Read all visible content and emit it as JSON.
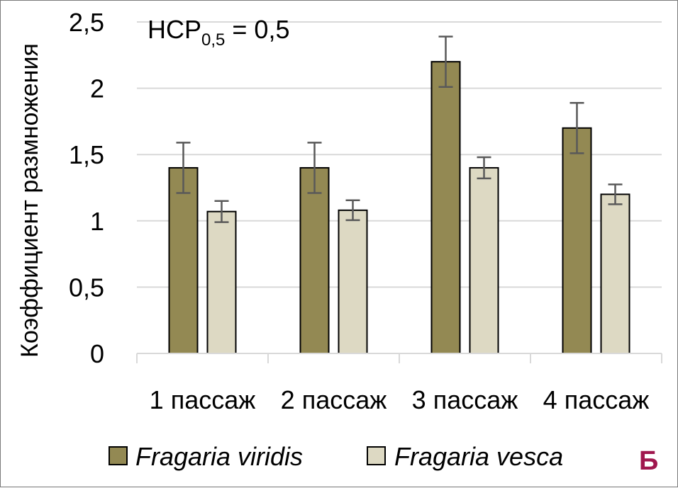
{
  "chart_data": {
    "type": "bar",
    "categories": [
      "1 пассаж",
      "2 пассаж",
      "3 пассаж",
      "4 пассаж"
    ],
    "series": [
      {
        "name": "Fragaria viridis",
        "color": "#938953",
        "values": [
          1.4,
          1.4,
          2.2,
          1.7
        ],
        "errors": [
          0.19,
          0.19,
          0.19,
          0.19
        ]
      },
      {
        "name": "Fragaria vesca",
        "color": "#ddd9c3",
        "values": [
          1.07,
          1.08,
          1.4,
          1.2
        ],
        "errors": [
          0.08,
          0.075,
          0.08,
          0.075
        ]
      }
    ],
    "ylabel": "Коэффициент размножения",
    "ylim": [
      0,
      2.5
    ],
    "yticks": [
      "0",
      "0,5",
      "1",
      "1,5",
      "2",
      "2,5"
    ],
    "ytick_values": [
      0,
      0.5,
      1,
      1.5,
      2,
      2.5
    ],
    "grid": true,
    "legend_position": "bottom",
    "annotation": {
      "main": "НСР",
      "sub": "0,5",
      "tail": " = 0,5"
    },
    "panel_letter": "Б",
    "panel_letter_color": "#a0174e"
  }
}
